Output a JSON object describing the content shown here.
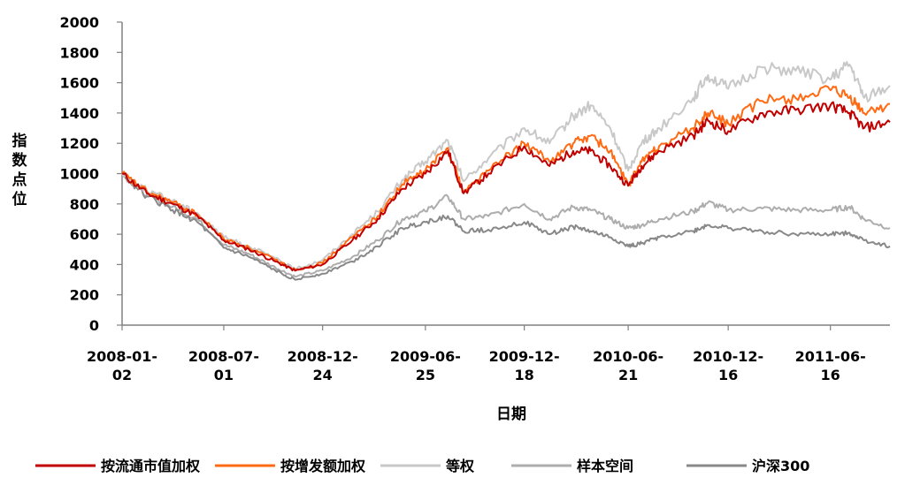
{
  "chart_data": {
    "type": "line",
    "xlabel": "日期",
    "ylabel": "指数点位",
    "ylim": [
      0,
      2000
    ],
    "yticks": [
      "2000",
      "1800",
      "1600",
      "1400",
      "1200",
      "1000",
      "800",
      "600",
      "400",
      "200",
      "0"
    ],
    "xlim": [
      "2008-01-02",
      "2011-09-30"
    ],
    "xticks": [
      {
        "date": "2008-01-02",
        "line1": "2008-01-",
        "line2": "02"
      },
      {
        "date": "2008-07-01",
        "line1": "2008-07-",
        "line2": "01"
      },
      {
        "date": "2008-12-24",
        "line1": "2008-12-",
        "line2": "24"
      },
      {
        "date": "2009-06-25",
        "line1": "2009-06-",
        "line2": "25"
      },
      {
        "date": "2009-12-18",
        "line1": "2009-12-",
        "line2": "18"
      },
      {
        "date": "2010-06-21",
        "line1": "2010-06-",
        "line2": "21"
      },
      {
        "date": "2010-12-16",
        "line1": "2010-12-",
        "line2": "16"
      },
      {
        "date": "2011-06-16",
        "line1": "2011-06-",
        "line2": "16"
      }
    ],
    "legend_position": "bottom",
    "x": [
      "2008-01-02",
      "2008-02-15",
      "2008-04-01",
      "2008-05-15",
      "2008-07-01",
      "2008-08-15",
      "2008-10-01",
      "2008-11-05",
      "2008-12-24",
      "2009-02-15",
      "2009-04-01",
      "2009-05-15",
      "2009-06-25",
      "2009-08-04",
      "2009-09-01",
      "2009-10-15",
      "2009-12-18",
      "2010-02-01",
      "2010-03-15",
      "2010-04-15",
      "2010-05-20",
      "2010-06-21",
      "2010-07-15",
      "2010-08-15",
      "2010-10-15",
      "2010-11-10",
      "2010-12-16",
      "2011-02-15",
      "2011-04-15",
      "2011-06-16",
      "2011-07-20",
      "2011-08-15",
      "2011-09-30"
    ],
    "series": [
      {
        "name": "按流通市值加权",
        "color": "#c00000",
        "values": [
          1000,
          870,
          800,
          720,
          560,
          500,
          420,
          360,
          400,
          560,
          700,
          900,
          1000,
          1150,
          870,
          1000,
          1180,
          1050,
          1150,
          1150,
          1050,
          920,
          1050,
          1150,
          1250,
          1350,
          1280,
          1400,
          1420,
          1450,
          1400,
          1300,
          1340
        ]
      },
      {
        "name": "按增发额加权",
        "color": "#ff6a13",
        "values": [
          1000,
          880,
          810,
          730,
          570,
          510,
          430,
          365,
          410,
          580,
          720,
          930,
          1020,
          1170,
          880,
          1020,
          1200,
          1080,
          1200,
          1250,
          1150,
          920,
          1080,
          1180,
          1300,
          1400,
          1330,
          1480,
          1500,
          1550,
          1500,
          1400,
          1460
        ]
      },
      {
        "name": "等权",
        "color": "#c8c8c8",
        "values": [
          1000,
          890,
          820,
          740,
          580,
          520,
          440,
          370,
          430,
          600,
          750,
          960,
          1080,
          1220,
          950,
          1100,
          1300,
          1200,
          1380,
          1450,
          1300,
          1020,
          1200,
          1300,
          1500,
          1650,
          1560,
          1700,
          1680,
          1620,
          1720,
          1500,
          1580
        ]
      },
      {
        "name": "样本空间",
        "color": "#adadad",
        "values": [
          1000,
          860,
          780,
          700,
          530,
          470,
          380,
          320,
          360,
          450,
          560,
          700,
          750,
          850,
          700,
          720,
          800,
          700,
          780,
          760,
          700,
          640,
          660,
          700,
          750,
          810,
          760,
          770,
          760,
          760,
          780,
          700,
          640
        ]
      },
      {
        "name": "沪深300",
        "color": "#888888",
        "values": [
          1000,
          850,
          760,
          680,
          510,
          450,
          360,
          300,
          340,
          420,
          520,
          640,
          680,
          720,
          620,
          630,
          680,
          600,
          650,
          620,
          580,
          520,
          540,
          580,
          620,
          660,
          640,
          620,
          600,
          600,
          610,
          560,
          520
        ]
      }
    ]
  }
}
